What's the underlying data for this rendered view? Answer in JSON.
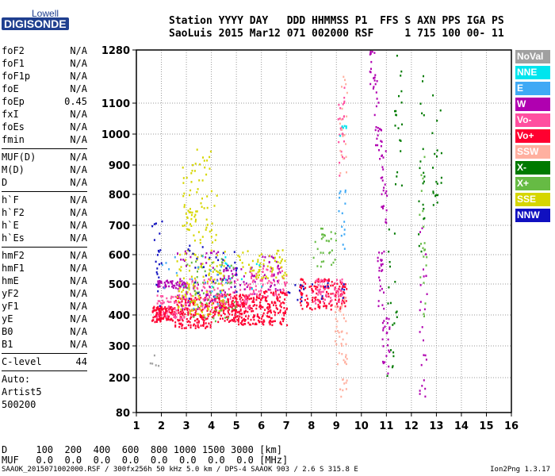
{
  "logo": {
    "top": "Lowell",
    "main": "DIGISONDE"
  },
  "header": {
    "line1": "Station YYYY DAY   DDD HHMMSS P1  FFS S AXN PPS IGA PS",
    "line2": "SaoLuis 2015 Mar12 071 002000 RSF     1 715 100 00- 11"
  },
  "params": {
    "groups": [
      [
        [
          "foF2",
          "N/A"
        ],
        [
          "foF1",
          "N/A"
        ],
        [
          "foF1p",
          "N/A"
        ],
        [
          "foE",
          "N/A"
        ],
        [
          "foEp",
          "0.45"
        ],
        [
          "fxI",
          "N/A"
        ],
        [
          "foEs",
          "N/A"
        ],
        [
          "fmin",
          "N/A"
        ]
      ],
      [
        [
          "MUF(D)",
          "N/A"
        ],
        [
          "M(D)",
          "N/A"
        ],
        [
          "D",
          "N/A"
        ]
      ],
      [
        [
          "h`F",
          "N/A"
        ],
        [
          "h`F2",
          "N/A"
        ],
        [
          "h`E",
          "N/A"
        ],
        [
          "h`Es",
          "N/A"
        ]
      ],
      [
        [
          "hmF2",
          "N/A"
        ],
        [
          "hmF1",
          "N/A"
        ],
        [
          "hmE",
          "N/A"
        ],
        [
          "yF2",
          "N/A"
        ],
        [
          "yF1",
          "N/A"
        ],
        [
          "yE",
          "N/A"
        ],
        [
          "B0",
          "N/A"
        ],
        [
          "B1",
          "N/A"
        ]
      ],
      [
        [
          "C-level",
          "44"
        ]
      ]
    ],
    "auto": [
      "Auto:",
      "Artist5",
      "500200"
    ]
  },
  "legend": [
    {
      "label": "NoVal",
      "color": "#a0a0a0"
    },
    {
      "label": "NNE",
      "color": "#00e5ee"
    },
    {
      "label": "E",
      "color": "#3fa9f5"
    },
    {
      "label": "W",
      "color": "#b000b0"
    },
    {
      "label": "Vo-",
      "color": "#ff4fa0"
    },
    {
      "label": "Vo+",
      "color": "#ff0030"
    },
    {
      "label": "SSW",
      "color": "#ffb0a0"
    },
    {
      "label": "X-",
      "color": "#007a00"
    },
    {
      "label": "X+",
      "color": "#66bb44"
    },
    {
      "label": "SSE",
      "color": "#d6d600"
    },
    {
      "label": "NNW",
      "color": "#1010c0"
    }
  ],
  "bottom": {
    "d_line": "D     100  200  400  600  800 1000 1500 3000 [km]",
    "muf_line": "MUF   0.0  0.0  0.0  0.0  0.0  0.0  0.0  0.0 [MHz]"
  },
  "footer": "SAAOK_2015071002000.RSF / 300fx256h 50 kHz 5.0 km / DPS-4 SAAOK 903 / 2.6 S 315.8 E",
  "version": "Ion2Png 1.3.17",
  "chart_data": {
    "type": "scatter",
    "x_ticks": [
      1,
      2,
      3,
      4,
      5,
      6,
      7,
      8,
      9,
      10,
      11,
      12,
      13,
      14,
      15,
      16
    ],
    "y_ticks": [
      80,
      200,
      300,
      400,
      500,
      600,
      700,
      800,
      900,
      1000,
      1100,
      1280
    ],
    "xlim": [
      1,
      16
    ],
    "ylim": [
      80,
      1280
    ],
    "y_scale": "nonlinear",
    "grid": true,
    "series": [
      {
        "name": "Vo+",
        "clusters": [
          [
            1.6,
            2.5,
            380,
            430,
            120
          ],
          [
            2.5,
            4.0,
            360,
            460,
            160
          ],
          [
            4.0,
            5.0,
            380,
            470,
            140
          ],
          [
            5.0,
            6.0,
            370,
            470,
            130
          ],
          [
            6.0,
            7.0,
            370,
            480,
            120
          ],
          [
            7.5,
            9.4,
            420,
            520,
            150
          ]
        ]
      },
      {
        "name": "Vo-",
        "clusters": [
          [
            1.8,
            3.0,
            390,
            470,
            70
          ],
          [
            3.0,
            5.5,
            420,
            520,
            110
          ],
          [
            5.5,
            7.0,
            460,
            560,
            80
          ],
          [
            8.0,
            9.3,
            440,
            520,
            60
          ],
          [
            9.0,
            9.3,
            860,
            1160,
            25
          ]
        ]
      },
      {
        "name": "W",
        "clusters": [
          [
            1.8,
            3.0,
            490,
            515,
            60
          ],
          [
            2.6,
            4.5,
            420,
            620,
            60
          ],
          [
            4.3,
            5.8,
            470,
            560,
            40
          ],
          [
            6.0,
            6.8,
            480,
            600,
            30
          ],
          [
            10.3,
            10.6,
            1150,
            1280,
            20
          ],
          [
            10.5,
            10.8,
            950,
            1150,
            20
          ],
          [
            10.7,
            11.0,
            700,
            950,
            25
          ],
          [
            10.6,
            10.9,
            420,
            620,
            25
          ],
          [
            10.8,
            11.1,
            200,
            420,
            25
          ],
          [
            12.3,
            12.6,
            80,
            700,
            25
          ]
        ]
      },
      {
        "name": "SSE",
        "clusters": [
          [
            2.6,
            4.6,
            400,
            620,
            120
          ],
          [
            2.8,
            4.2,
            640,
            960,
            80
          ],
          [
            5.0,
            7.0,
            520,
            620,
            60
          ]
        ]
      },
      {
        "name": "X-",
        "clusters": [
          [
            11.3,
            11.6,
            820,
            1280,
            20
          ],
          [
            12.2,
            12.5,
            600,
            1200,
            20
          ],
          [
            12.8,
            13.2,
            700,
            1150,
            20
          ],
          [
            11.0,
            11.4,
            200,
            700,
            20
          ]
        ]
      },
      {
        "name": "X+",
        "clusters": [
          [
            3.0,
            5.0,
            380,
            600,
            60
          ],
          [
            8.0,
            9.0,
            560,
            700,
            30
          ],
          [
            12.3,
            12.6,
            300,
            1000,
            20
          ]
        ]
      },
      {
        "name": "NNW",
        "clusters": [
          [
            1.6,
            2.0,
            420,
            720,
            20
          ],
          [
            3.0,
            5.0,
            450,
            640,
            30
          ],
          [
            7.0,
            9.4,
            440,
            520,
            20
          ]
        ]
      },
      {
        "name": "E",
        "clusters": [
          [
            2.0,
            5.0,
            420,
            600,
            20
          ],
          [
            9.0,
            9.4,
            600,
            820,
            15
          ]
        ]
      },
      {
        "name": "NNE",
        "clusters": [
          [
            4.0,
            6.0,
            450,
            600,
            15
          ],
          [
            9.1,
            9.4,
            980,
            1030,
            6
          ]
        ]
      },
      {
        "name": "SSW",
        "clusters": [
          [
            8.8,
            9.4,
            300,
            460,
            30
          ],
          [
            9.0,
            9.4,
            130,
            300,
            20
          ],
          [
            9.1,
            9.4,
            860,
            1200,
            20
          ]
        ]
      },
      {
        "name": "NoVal",
        "clusters": [
          [
            1.5,
            2.0,
            240,
            300,
            5
          ]
        ]
      }
    ]
  }
}
